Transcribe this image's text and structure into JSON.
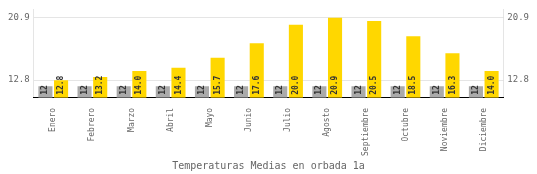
{
  "chart_data": {
    "type": "bar",
    "title": "Temperaturas Medias en orbada 1a",
    "categories": [
      "Enero",
      "Febrero",
      "Marzo",
      "Abril",
      "Mayo",
      "Junio",
      "Julio",
      "Agosto",
      "Septiembre",
      "Octubre",
      "Noviembre",
      "Diciembre"
    ],
    "series": [
      {
        "color": "#AAAAAA",
        "values": [
          12.0,
          12.0,
          12.0,
          12.0,
          12.0,
          12.0,
          12.0,
          12.0,
          12.0,
          12.0,
          12.0,
          12.0
        ]
      },
      {
        "color": "#FFD700",
        "values": [
          12.8,
          13.2,
          14.0,
          14.4,
          15.7,
          17.6,
          20.0,
          20.9,
          20.5,
          18.5,
          16.3,
          14.0
        ],
        "value_labels": [
          "12.8",
          "13.2",
          "14.0",
          "14.4",
          "15.7",
          "17.6",
          "20.0",
          "20.9",
          "20.5",
          "18.5",
          "16.3",
          "14.0"
        ]
      }
    ],
    "ylim": [
      10.5,
      22.0
    ],
    "yticks": [
      12.8,
      20.9
    ],
    "y2lim": [
      10.5,
      22.0
    ],
    "y2ticks": [
      12.8,
      20.9
    ],
    "grid": true,
    "data_labels": true
  }
}
